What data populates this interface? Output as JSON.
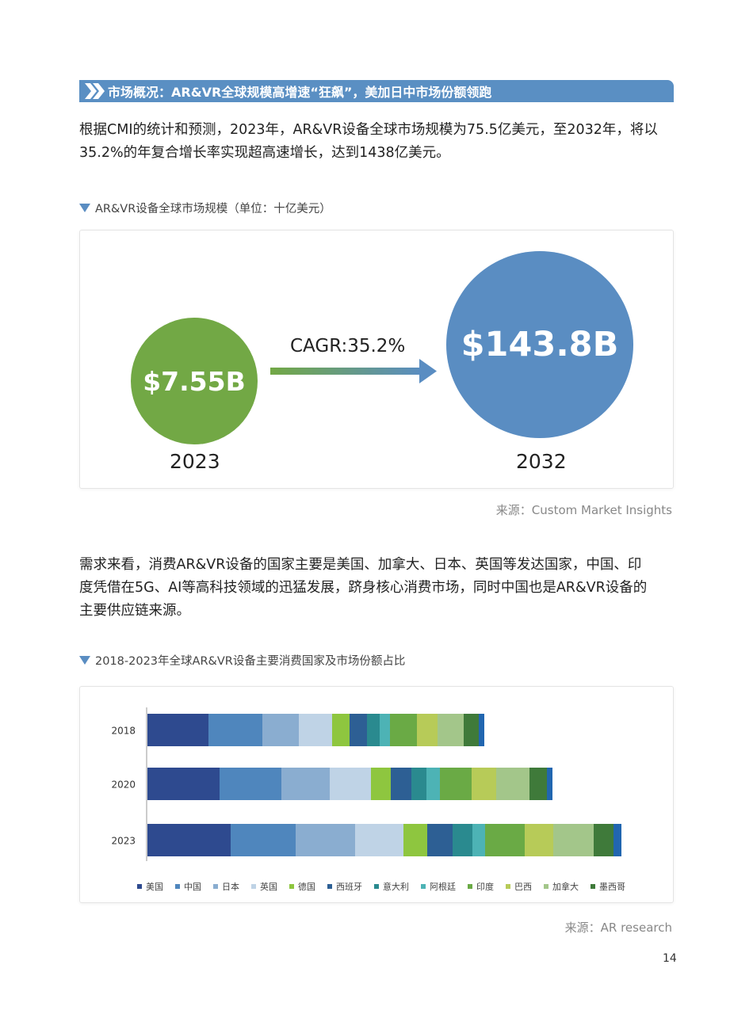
{
  "section": {
    "title": "市场概况：AR&VR全球规模高增速“狂飙”，美加日中市场份额领跑"
  },
  "paragraph1": {
    "line1": "根据CMI的统计和预测，2023年，AR&VR设备全球市场规模为75.5亿美元，至2032年，将以",
    "line2": "35.2%的年复合增长率实现超高速增长，达到1438亿美元。"
  },
  "chart1": {
    "caption": "AR&VR设备全球市场规模（单位：十亿美元）",
    "value_2023": "$7.55B",
    "value_2032": "$143.8B",
    "label_2023": "2023",
    "label_2032": "2032",
    "cagr": "CAGR:35.2%",
    "source": "来源：Custom Market Insights",
    "colors": {
      "small_circle": "#72a845",
      "big_circle": "#5a8dc2"
    }
  },
  "paragraph2": {
    "line1": "需求来看，消费AR&VR设备的国家主要是美国、加拿大、日本、英国等发达国家，中国、印",
    "line2": "度凭借在5G、AI等高科技领域的迅猛发展，跻身核心消费市场，同时中国也是AR&VR设备的",
    "line3": "主要供应链来源。"
  },
  "chart2": {
    "caption": "2018-2023年全球AR&VR设备主要消费国家及市场份额占比",
    "source": "来源：AR research"
  },
  "chart_data": [
    {
      "type": "bubble",
      "categories": [
        "2023",
        "2032"
      ],
      "values": [
        7.55,
        143.8
      ],
      "labels": [
        "$7.55B",
        "$143.8B"
      ],
      "annotation": "CAGR:35.2%",
      "title": "AR&VR设备全球市场规模（单位：十亿美元）"
    },
    {
      "type": "bar",
      "orientation": "horizontal",
      "stacked": true,
      "title": "2018-2023年全球AR&VR设备主要消费国家及市场份额占比",
      "categories": [
        "2018",
        "2020",
        "2023"
      ],
      "legend_position": "bottom",
      "grid": false,
      "series": [
        {
          "name": "美国",
          "color": "#2e4a8f",
          "values": [
            77,
            91,
            105
          ]
        },
        {
          "name": "中国",
          "color": "#4f86bd",
          "values": [
            68,
            78,
            82
          ]
        },
        {
          "name": "日本",
          "color": "#8aadd0",
          "values": [
            46,
            61,
            75
          ]
        },
        {
          "name": "英国",
          "color": "#bfd3e6",
          "values": [
            42,
            52,
            61
          ]
        },
        {
          "name": "德国",
          "color": "#8ec63f",
          "values": [
            22,
            25,
            30
          ]
        },
        {
          "name": "西班牙",
          "color": "#2d5f94",
          "values": [
            22,
            26,
            32
          ]
        },
        {
          "name": "意大利",
          "color": "#2a8a8f",
          "values": [
            16,
            19,
            25
          ]
        },
        {
          "name": "阿根廷",
          "color": "#4db3b5",
          "values": [
            13,
            17,
            16
          ]
        },
        {
          "name": "印度",
          "color": "#6aaa45",
          "values": [
            34,
            40,
            50
          ]
        },
        {
          "name": "巴西",
          "color": "#b7cb58",
          "values": [
            26,
            31,
            36
          ]
        },
        {
          "name": "加拿大",
          "color": "#a3c68a",
          "values": [
            33,
            42,
            51
          ]
        },
        {
          "name": "墨西哥",
          "color": "#3f7a3a",
          "values": [
            19,
            22,
            25
          ]
        },
        {
          "name": "",
          "color": "#2166b0",
          "values": [
            7,
            7,
            10
          ]
        }
      ]
    }
  ],
  "page": {
    "number": "14"
  }
}
